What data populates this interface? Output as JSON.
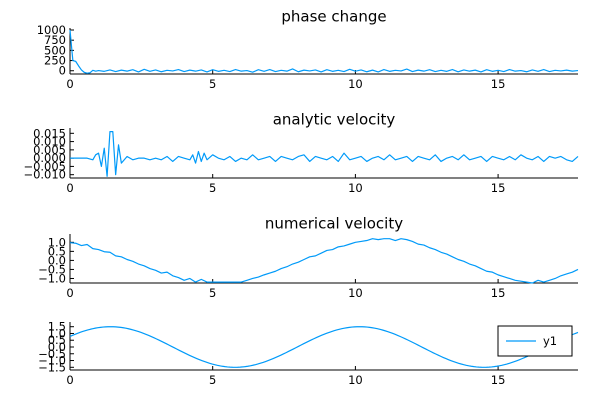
{
  "chart_data": [
    {
      "type": "line",
      "title": "phase change",
      "xlim": [
        0,
        17.8
      ],
      "ylim": [
        -80,
        1000
      ],
      "xticks": [
        0,
        5,
        10,
        15
      ],
      "yticks": [
        0,
        250,
        500,
        750,
        1000
      ],
      "series": [
        {
          "color": "#009af9",
          "x": [
            0.0,
            0.1,
            0.2,
            0.3,
            0.4,
            0.5,
            0.6,
            0.7,
            0.8,
            0.9,
            1.0,
            1.2,
            1.4,
            1.6,
            1.8,
            2.0,
            2.2,
            2.4,
            2.6,
            2.8,
            3.0,
            3.2,
            3.4,
            3.6,
            3.8,
            4.0,
            4.2,
            4.4,
            4.6,
            4.8,
            5.0,
            5.2,
            5.4,
            5.6,
            5.8,
            6.0,
            6.2,
            6.4,
            6.6,
            6.8,
            7.0,
            7.2,
            7.4,
            7.6,
            7.8,
            8.0,
            8.2,
            8.4,
            8.6,
            8.8,
            9.0,
            9.2,
            9.4,
            9.6,
            9.8,
            10.0,
            10.2,
            10.4,
            10.6,
            10.8,
            11.0,
            11.2,
            11.4,
            11.6,
            11.8,
            12.0,
            12.2,
            12.4,
            12.6,
            12.8,
            13.0,
            13.2,
            13.4,
            13.6,
            13.8,
            14.0,
            14.2,
            14.4,
            14.6,
            14.8,
            15.0,
            15.2,
            15.4,
            15.6,
            15.8,
            16.0,
            16.2,
            16.4,
            16.6,
            16.8,
            17.0,
            17.2,
            17.4,
            17.6,
            17.8
          ],
          "y": [
            1000,
            250,
            230,
            120,
            20,
            -40,
            -60,
            -50,
            10,
            -10,
            5,
            -15,
            20,
            -20,
            15,
            -10,
            25,
            -30,
            35,
            -15,
            20,
            -25,
            10,
            -5,
            30,
            -20,
            15,
            -10,
            20,
            -30,
            25,
            -15,
            10,
            -20,
            30,
            -10,
            5,
            -35,
            25,
            -15,
            30,
            -20,
            10,
            -10,
            45,
            -25,
            15,
            -5,
            20,
            -30,
            25,
            -15,
            10,
            -20,
            35,
            -10,
            20,
            -25,
            15,
            -30,
            30,
            -15,
            10,
            -5,
            40,
            -20,
            15,
            -10,
            25,
            -20,
            10,
            -15,
            30,
            -25,
            20,
            -10,
            15,
            -30,
            25,
            -15,
            10,
            -20,
            30,
            -10,
            5,
            -25,
            20,
            -15,
            30,
            -20,
            10,
            -5,
            15,
            -10,
            5
          ]
        }
      ]
    },
    {
      "type": "line",
      "title": "analytic velocity",
      "xlim": [
        0,
        17.8
      ],
      "ylim": [
        -0.012,
        0.017
      ],
      "xticks": [
        0,
        5,
        10,
        15
      ],
      "yticks": [
        -0.01,
        -0.005,
        0.0,
        0.005,
        0.01,
        0.015
      ],
      "yticklabels": [
        "−0.010",
        "−0.005",
        "0.000",
        "0.005",
        "0.010",
        "0.015"
      ],
      "series": [
        {
          "color": "#009af9",
          "x": [
            0.0,
            0.2,
            0.4,
            0.6,
            0.8,
            0.9,
            1.0,
            1.1,
            1.2,
            1.3,
            1.4,
            1.5,
            1.6,
            1.7,
            1.8,
            2.0,
            2.2,
            2.4,
            2.6,
            2.8,
            3.0,
            3.2,
            3.4,
            3.6,
            3.8,
            4.0,
            4.2,
            4.3,
            4.4,
            4.5,
            4.6,
            4.7,
            4.8,
            5.0,
            5.2,
            5.4,
            5.6,
            5.8,
            6.0,
            6.2,
            6.4,
            6.6,
            6.8,
            7.0,
            7.2,
            7.4,
            7.6,
            7.8,
            8.0,
            8.2,
            8.4,
            8.6,
            8.8,
            9.0,
            9.2,
            9.4,
            9.6,
            9.8,
            10.0,
            10.2,
            10.4,
            10.6,
            10.8,
            11.0,
            11.2,
            11.4,
            11.6,
            11.8,
            12.0,
            12.2,
            12.4,
            12.6,
            12.8,
            13.0,
            13.2,
            13.4,
            13.6,
            13.8,
            14.0,
            14.2,
            14.4,
            14.6,
            14.8,
            15.0,
            15.2,
            15.4,
            15.6,
            15.8,
            16.0,
            16.2,
            16.4,
            16.6,
            16.8,
            17.0,
            17.2,
            17.4,
            17.6,
            17.8
          ],
          "y": [
            0.0,
            0.0,
            0.0,
            0.0,
            -0.001,
            0.002,
            0.003,
            -0.005,
            0.006,
            -0.011,
            0.016,
            0.016,
            -0.01,
            0.008,
            -0.003,
            0.001,
            -0.001,
            0.0,
            0.0,
            -0.001,
            0.0,
            -0.001,
            0.001,
            -0.002,
            0.001,
            0.0,
            -0.001,
            0.002,
            -0.003,
            0.004,
            -0.002,
            0.003,
            -0.001,
            0.002,
            0.0,
            -0.001,
            0.001,
            -0.002,
            0.0,
            -0.001,
            0.002,
            -0.001,
            0.0,
            0.001,
            -0.002,
            0.001,
            0.0,
            -0.001,
            0.001,
            0.002,
            -0.002,
            0.001,
            0.0,
            -0.001,
            0.001,
            -0.002,
            0.003,
            -0.001,
            0.0,
            0.001,
            -0.002,
            0.0,
            0.001,
            -0.001,
            0.002,
            -0.001,
            0.0,
            0.001,
            -0.002,
            0.001,
            0.0,
            -0.001,
            0.002,
            -0.002,
            0.0,
            0.001,
            -0.001,
            0.002,
            -0.001,
            0.0,
            0.001,
            -0.002,
            0.001,
            0.0,
            -0.001,
            0.001,
            -0.001,
            0.002,
            0.0,
            -0.001,
            0.001,
            -0.002,
            0.001,
            0.0,
            0.001,
            -0.001,
            -0.002,
            0.001
          ]
        }
      ]
    },
    {
      "type": "line",
      "title": "numerical velocity",
      "xlim": [
        0,
        17.8
      ],
      "ylim": [
        -1.25,
        1.35
      ],
      "xticks": [
        0,
        5,
        10,
        15
      ],
      "yticks": [
        -1.0,
        -0.5,
        0.0,
        0.5,
        1.0
      ],
      "yticklabels": [
        "−1.0",
        "−0.5",
        "0.0",
        "0.5",
        "1.0"
      ],
      "series": [
        {
          "color": "#009af9",
          "x": [
            0.0,
            0.2,
            0.4,
            0.6,
            0.8,
            1.0,
            1.2,
            1.4,
            1.6,
            1.8,
            2.0,
            2.2,
            2.4,
            2.6,
            2.8,
            3.0,
            3.2,
            3.4,
            3.6,
            3.8,
            4.0,
            4.2,
            4.4,
            4.6,
            4.8,
            5.0,
            5.2,
            5.4,
            5.6,
            5.8,
            6.0,
            6.2,
            6.4,
            6.6,
            6.8,
            7.0,
            7.2,
            7.4,
            7.6,
            7.8,
            8.0,
            8.2,
            8.4,
            8.6,
            8.8,
            9.0,
            9.2,
            9.4,
            9.6,
            9.8,
            10.0,
            10.2,
            10.4,
            10.6,
            10.8,
            11.0,
            11.2,
            11.4,
            11.6,
            11.8,
            12.0,
            12.2,
            12.4,
            12.6,
            12.8,
            13.0,
            13.2,
            13.4,
            13.6,
            13.8,
            14.0,
            14.2,
            14.4,
            14.6,
            14.8,
            15.0,
            15.2,
            15.4,
            15.6,
            15.8,
            16.0,
            16.2,
            16.4,
            16.6,
            16.8,
            17.0,
            17.2,
            17.4,
            17.6,
            17.8
          ],
          "y": [
            0.98,
            0.95,
            0.82,
            0.88,
            0.65,
            0.6,
            0.48,
            0.45,
            0.25,
            0.2,
            0.05,
            -0.05,
            -0.2,
            -0.3,
            -0.45,
            -0.55,
            -0.7,
            -0.65,
            -0.85,
            -0.95,
            -1.1,
            -1.0,
            -1.2,
            -1.05,
            -1.2,
            -1.2,
            -1.2,
            -1.2,
            -1.2,
            -1.2,
            -1.2,
            -1.1,
            -1.0,
            -0.92,
            -0.8,
            -0.7,
            -0.6,
            -0.45,
            -0.35,
            -0.2,
            -0.1,
            0.05,
            0.2,
            0.25,
            0.4,
            0.55,
            0.6,
            0.75,
            0.8,
            0.9,
            1.0,
            1.05,
            1.1,
            1.2,
            1.15,
            1.2,
            1.2,
            1.1,
            1.2,
            1.15,
            1.05,
            0.9,
            0.85,
            0.7,
            0.6,
            0.45,
            0.35,
            0.2,
            0.05,
            -0.05,
            -0.2,
            -0.3,
            -0.45,
            -0.6,
            -0.65,
            -0.8,
            -0.9,
            -1.0,
            -1.1,
            -1.15,
            -1.2,
            -1.25,
            -1.1,
            -1.2,
            -1.1,
            -1.0,
            -0.85,
            -0.75,
            -0.65,
            -0.5
          ]
        }
      ]
    },
    {
      "type": "line",
      "title": "",
      "xlim": [
        0,
        17.8
      ],
      "ylim": [
        -1.7,
        1.7
      ],
      "xticks": [
        0,
        5,
        10,
        15
      ],
      "yticks": [
        -1.5,
        -1.0,
        -0.5,
        0.0,
        0.5,
        1.0,
        1.5
      ],
      "yticklabels": [
        "−1.5",
        "−1.0",
        "−0.5",
        "0.0",
        "0.5",
        "1.0",
        "1.5"
      ],
      "legend": {
        "position": "right",
        "entries": [
          "y1"
        ]
      },
      "series": [
        {
          "name": "y1",
          "color": "#009af9",
          "function": "1.5*sin(0.72*x + 0.55)",
          "x_range": [
            0,
            17.8
          ]
        }
      ]
    }
  ]
}
